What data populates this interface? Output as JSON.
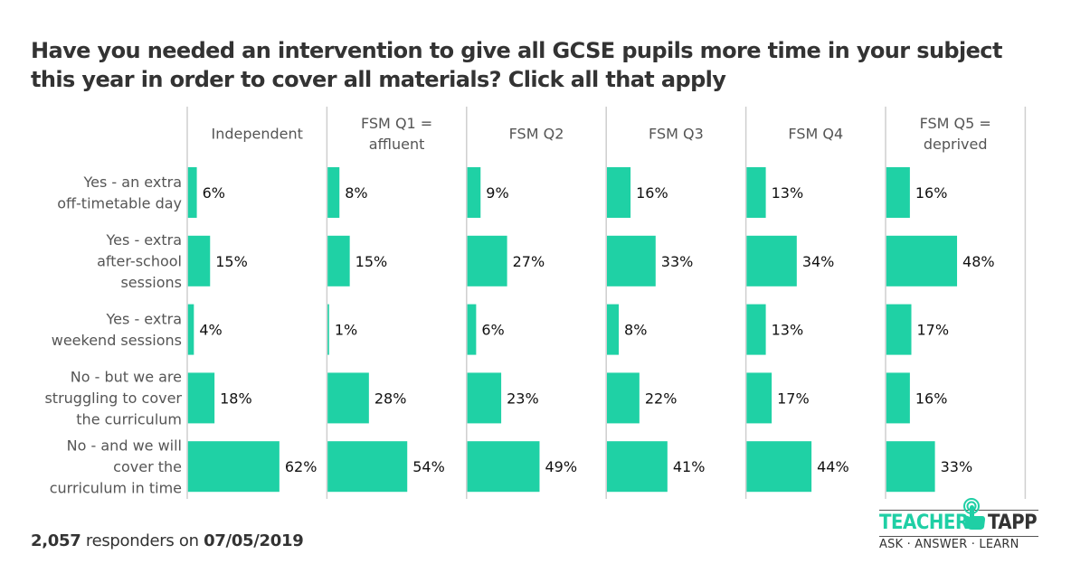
{
  "chart_data": {
    "type": "bar",
    "orientation": "horizontal",
    "layout": "small-multiples",
    "title": "Have you needed an intervention to give all GCSE pupils more time in your subject this year in order to cover all materials? Click all that apply",
    "categories": [
      [
        "Yes - an extra",
        "off-timetable day"
      ],
      [
        "Yes - extra",
        "after-school",
        "sessions"
      ],
      [
        "Yes - extra",
        "weekend sessions"
      ],
      [
        "No - but we are",
        "struggling to cover",
        "the curriculum"
      ],
      [
        "No - and we will",
        "cover the",
        "curriculum in time"
      ]
    ],
    "panels": [
      {
        "name": [
          "Independent"
        ],
        "values": [
          6,
          15,
          4,
          18,
          62
        ]
      },
      {
        "name": [
          "FSM Q1 =",
          "affluent"
        ],
        "values": [
          8,
          15,
          1,
          28,
          54
        ]
      },
      {
        "name": [
          "FSM Q2"
        ],
        "values": [
          9,
          27,
          6,
          23,
          49
        ]
      },
      {
        "name": [
          "FSM Q3"
        ],
        "values": [
          16,
          33,
          8,
          22,
          41
        ]
      },
      {
        "name": [
          "FSM Q4"
        ],
        "values": [
          13,
          34,
          13,
          17,
          44
        ]
      },
      {
        "name": [
          "FSM Q5 =",
          "deprived"
        ],
        "values": [
          16,
          48,
          17,
          16,
          33
        ]
      }
    ],
    "value_suffix": "%",
    "xlim": [
      0,
      100
    ],
    "grid": false,
    "legend": "none",
    "bar_color": "#1fd1a5"
  },
  "footer": {
    "count": "2,057",
    "middle": " responders on ",
    "date": "07/05/2019"
  },
  "logo": {
    "word1": "TEACHER",
    "word2": "TAPP",
    "tagline": "ASK · ANSWER · LEARN"
  }
}
